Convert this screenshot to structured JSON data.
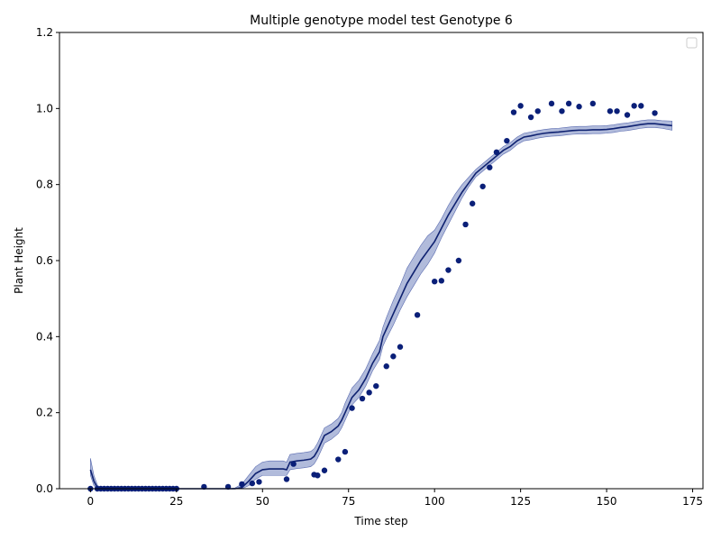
{
  "chart_data": {
    "type": "line",
    "title": "Multiple genotype model test Genotype 6",
    "xlabel": "Time step",
    "ylabel": "Plant Height",
    "xlim": [
      -9,
      178
    ],
    "ylim": [
      0,
      1.2
    ],
    "x_ticks": [
      0,
      25,
      50,
      75,
      100,
      125,
      150,
      175
    ],
    "y_ticks": [
      0.0,
      0.2,
      0.4,
      0.6,
      0.8,
      1.0,
      1.2
    ],
    "grid": false,
    "legend": {
      "placement": "top-right",
      "entries": []
    },
    "colors": {
      "line": "#0e2170",
      "band": "#8796c8",
      "points": "#0a1f78"
    },
    "series": [
      {
        "kind": "line_with_band",
        "x": [
          0,
          1,
          2,
          3,
          5,
          10,
          15,
          20,
          25,
          30,
          35,
          40,
          42,
          44,
          46,
          48,
          50,
          52,
          54,
          56,
          57,
          58,
          60,
          62,
          64,
          65,
          66,
          67,
          68,
          70,
          72,
          73,
          74,
          75,
          76,
          78,
          80,
          82,
          84,
          85,
          86,
          88,
          90,
          92,
          94,
          96,
          98,
          100,
          102,
          104,
          106,
          108,
          110,
          112,
          114,
          116,
          118,
          120,
          122,
          124,
          126,
          128,
          130,
          132,
          134,
          136,
          138,
          140,
          142,
          144,
          146,
          148,
          150,
          152,
          154,
          156,
          158,
          160,
          162,
          164,
          166,
          169
        ],
        "y": [
          0.05,
          0.02,
          0.003,
          0.0,
          0.0,
          0.0,
          0.0,
          0.0,
          0.0,
          0.0,
          0.0,
          0.0,
          0.0,
          0.003,
          0.02,
          0.04,
          0.05,
          0.052,
          0.052,
          0.052,
          0.05,
          0.07,
          0.073,
          0.075,
          0.078,
          0.085,
          0.1,
          0.12,
          0.14,
          0.15,
          0.165,
          0.18,
          0.2,
          0.22,
          0.24,
          0.26,
          0.29,
          0.33,
          0.36,
          0.4,
          0.42,
          0.46,
          0.5,
          0.54,
          0.57,
          0.6,
          0.625,
          0.65,
          0.685,
          0.72,
          0.75,
          0.78,
          0.805,
          0.83,
          0.845,
          0.86,
          0.875,
          0.89,
          0.9,
          0.915,
          0.925,
          0.928,
          0.932,
          0.935,
          0.937,
          0.938,
          0.94,
          0.942,
          0.943,
          0.943,
          0.944,
          0.944,
          0.945,
          0.947,
          0.95,
          0.952,
          0.955,
          0.958,
          0.96,
          0.96,
          0.958,
          0.955
        ],
        "lower": [
          0.035,
          0.008,
          0.0,
          0.0,
          0.0,
          0.0,
          0.0,
          0.0,
          0.0,
          0.0,
          0.0,
          0.0,
          0.0,
          0.0,
          0.008,
          0.025,
          0.035,
          0.035,
          0.035,
          0.035,
          0.035,
          0.05,
          0.053,
          0.055,
          0.058,
          0.065,
          0.08,
          0.1,
          0.12,
          0.13,
          0.145,
          0.16,
          0.18,
          0.2,
          0.22,
          0.24,
          0.27,
          0.31,
          0.34,
          0.375,
          0.395,
          0.43,
          0.47,
          0.505,
          0.535,
          0.565,
          0.59,
          0.62,
          0.66,
          0.695,
          0.73,
          0.765,
          0.795,
          0.82,
          0.835,
          0.85,
          0.865,
          0.88,
          0.89,
          0.905,
          0.915,
          0.918,
          0.922,
          0.925,
          0.927,
          0.928,
          0.93,
          0.932,
          0.933,
          0.933,
          0.934,
          0.934,
          0.935,
          0.937,
          0.94,
          0.942,
          0.945,
          0.948,
          0.95,
          0.95,
          0.948,
          0.943
        ],
        "upper": [
          0.08,
          0.035,
          0.01,
          0.0,
          0.0,
          0.0,
          0.0,
          0.0,
          0.0,
          0.0,
          0.0,
          0.0,
          0.002,
          0.012,
          0.035,
          0.058,
          0.07,
          0.073,
          0.073,
          0.073,
          0.07,
          0.09,
          0.093,
          0.095,
          0.098,
          0.105,
          0.12,
          0.14,
          0.16,
          0.17,
          0.185,
          0.2,
          0.225,
          0.245,
          0.265,
          0.285,
          0.315,
          0.355,
          0.39,
          0.425,
          0.45,
          0.495,
          0.535,
          0.58,
          0.61,
          0.64,
          0.665,
          0.68,
          0.71,
          0.745,
          0.775,
          0.8,
          0.82,
          0.84,
          0.855,
          0.87,
          0.885,
          0.9,
          0.91,
          0.925,
          0.935,
          0.938,
          0.942,
          0.945,
          0.947,
          0.948,
          0.95,
          0.952,
          0.953,
          0.953,
          0.954,
          0.954,
          0.955,
          0.957,
          0.96,
          0.962,
          0.965,
          0.968,
          0.97,
          0.97,
          0.968,
          0.967
        ]
      },
      {
        "kind": "scatter",
        "x": [
          0,
          2,
          3,
          4,
          5,
          6,
          7,
          8,
          9,
          10,
          11,
          12,
          13,
          14,
          15,
          16,
          17,
          18,
          19,
          20,
          21,
          22,
          23,
          24,
          25,
          33,
          40,
          44,
          47,
          49,
          57,
          59,
          65,
          66,
          68,
          72,
          74,
          76,
          79,
          81,
          83,
          86,
          88,
          90,
          95,
          100,
          102,
          104,
          107,
          109,
          111,
          114,
          116,
          118,
          121,
          123,
          125,
          128,
          130,
          134,
          137,
          139,
          142,
          146,
          151,
          153,
          156,
          158,
          160,
          164
        ],
        "y": [
          0.0,
          0.0,
          0.0,
          0.0,
          0.0,
          0.0,
          0.0,
          0.0,
          0.0,
          0.0,
          0.0,
          0.0,
          0.0,
          0.0,
          0.0,
          0.0,
          0.0,
          0.0,
          0.0,
          0.0,
          0.0,
          0.0,
          0.0,
          0.0,
          0.0,
          0.005,
          0.005,
          0.012,
          0.014,
          0.018,
          0.025,
          0.065,
          0.037,
          0.035,
          0.048,
          0.077,
          0.097,
          0.212,
          0.237,
          0.253,
          0.27,
          0.322,
          0.348,
          0.373,
          0.457,
          0.545,
          0.547,
          0.575,
          0.6,
          0.695,
          0.75,
          0.795,
          0.845,
          0.885,
          0.915,
          0.99,
          1.007,
          0.977,
          0.993,
          1.013,
          0.993,
          1.013,
          1.005,
          1.013,
          0.993,
          0.993,
          0.983,
          1.007,
          1.007,
          0.988
        ]
      }
    ]
  }
}
